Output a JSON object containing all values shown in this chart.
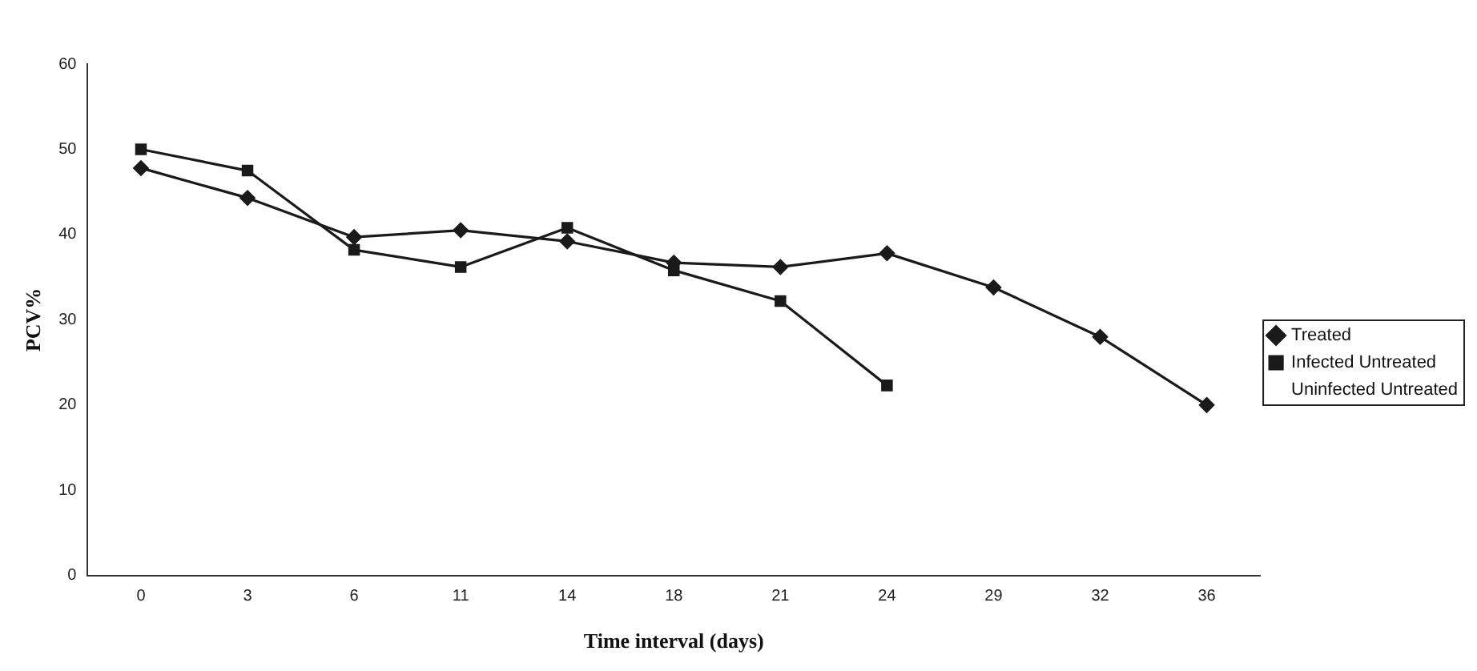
{
  "chart_data": {
    "type": "line",
    "xlabel": "Time interval (days)",
    "ylabel": "PCV%",
    "categories": [
      "0",
      "3",
      "6",
      "11",
      "14",
      "18",
      "21",
      "24",
      "29",
      "32",
      "36"
    ],
    "ylim": [
      0,
      60
    ],
    "yticks": [
      0,
      10,
      20,
      30,
      40,
      50,
      60
    ],
    "grid": false,
    "legend": "right",
    "line_style": "solid",
    "series": [
      {
        "name": "Treated",
        "color": "#1a1a1a",
        "marker": "diamond",
        "values": [
          47.8,
          44.3,
          39.7,
          40.5,
          39.2,
          36.7,
          36.2,
          37.8,
          33.8,
          28,
          20
        ]
      },
      {
        "name": "Infected Untreated",
        "color": "#1a1a1a",
        "marker": "square",
        "values": [
          50,
          47.5,
          38.2,
          36.2,
          40.8,
          35.8,
          32.2,
          22.3,
          null,
          null,
          null
        ]
      },
      {
        "name": "Uninfected Untreated",
        "marker": "none",
        "values": [
          null,
          null,
          null,
          null,
          null,
          null,
          null,
          null,
          null,
          null,
          null
        ]
      }
    ]
  }
}
